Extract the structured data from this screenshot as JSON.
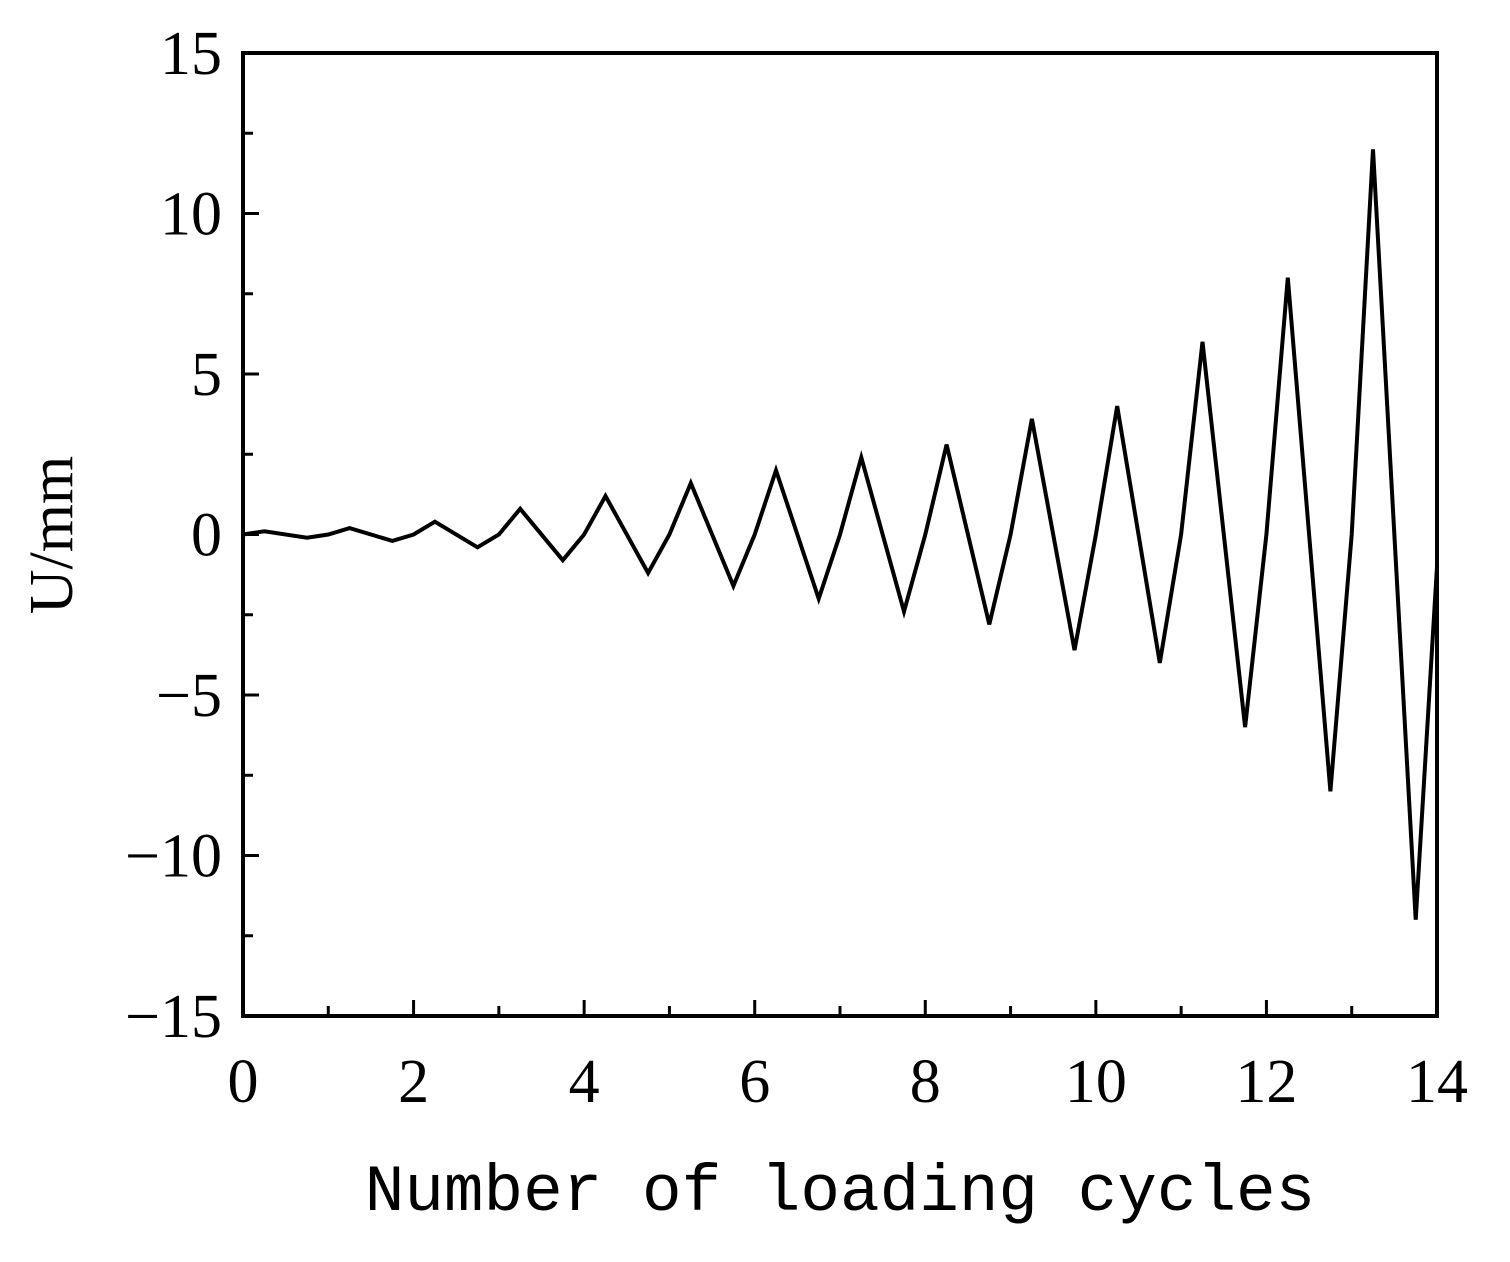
{
  "chart_data": {
    "type": "line",
    "title": "",
    "xlabel": "Number of loading cycles",
    "ylabel": "U/mm",
    "xlim": [
      0,
      14
    ],
    "ylim": [
      -15,
      15
    ],
    "xticks": [
      0,
      2,
      4,
      6,
      8,
      10,
      12,
      14
    ],
    "yticks": [
      -15,
      -10,
      -5,
      0,
      5,
      10,
      15
    ],
    "x_tick_labels": [
      "0",
      "2",
      "4",
      "6",
      "8",
      "10",
      "12",
      "14"
    ],
    "y_tick_labels": [
      "−15",
      "−10",
      "−5",
      "0",
      "5",
      "10",
      "15"
    ],
    "grid": false,
    "line_color": "#000000",
    "series": [
      {
        "x": [
          0,
          0.25,
          0.75,
          1,
          1.25,
          1.75,
          2,
          2.25,
          2.75,
          3,
          3.25,
          3.75,
          4,
          4.25,
          4.75,
          5,
          5.25,
          5.75,
          6,
          6.25,
          6.75,
          7,
          7.25,
          7.75,
          8,
          8.25,
          8.75,
          9,
          9.25,
          9.75,
          10,
          10.25,
          10.75,
          11,
          11.25,
          11.75,
          12,
          12.25,
          12.75,
          13,
          13.25,
          13.75,
          14
        ],
        "y": [
          0,
          0.1,
          -0.1,
          0,
          0.2,
          -0.2,
          0,
          0.4,
          -0.4,
          0,
          0.8,
          -0.8,
          0,
          1.2,
          -1.2,
          0,
          1.6,
          -1.6,
          0,
          2.0,
          -2.0,
          0,
          2.4,
          -2.4,
          0,
          2.8,
          -2.8,
          0,
          3.6,
          -3.6,
          0,
          4.0,
          -4.0,
          0,
          6.0,
          -6.0,
          0,
          8.0,
          -8.0,
          0,
          12.0,
          -12.0,
          -1.0
        ]
      }
    ]
  }
}
